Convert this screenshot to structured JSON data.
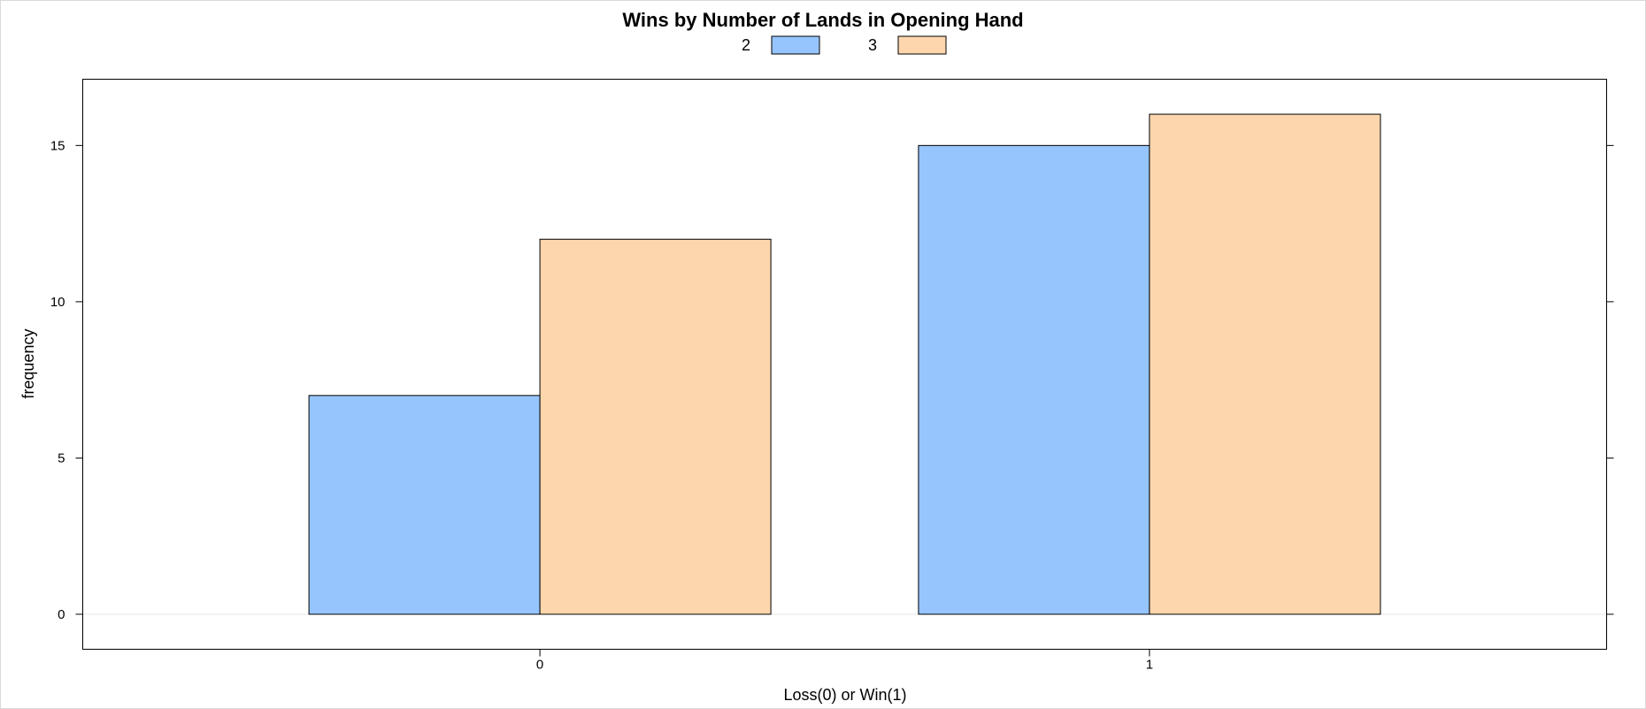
{
  "chart_data": {
    "type": "bar",
    "title": "Wins by Number of Lands in Opening Hand",
    "xlabel": "Loss(0) or Win(1)",
    "ylabel": "frequency",
    "categories": [
      "0",
      "1"
    ],
    "series": [
      {
        "name": "2",
        "values": [
          7,
          15
        ],
        "color": "#96c5fe"
      },
      {
        "name": "3",
        "values": [
          12,
          16
        ],
        "color": "#fed6ad"
      }
    ],
    "yticks": [
      0,
      5,
      10,
      15
    ],
    "ylim": [
      -1.12,
      17.12
    ],
    "grid": false,
    "legend_position": "top",
    "reference_line": 0
  }
}
